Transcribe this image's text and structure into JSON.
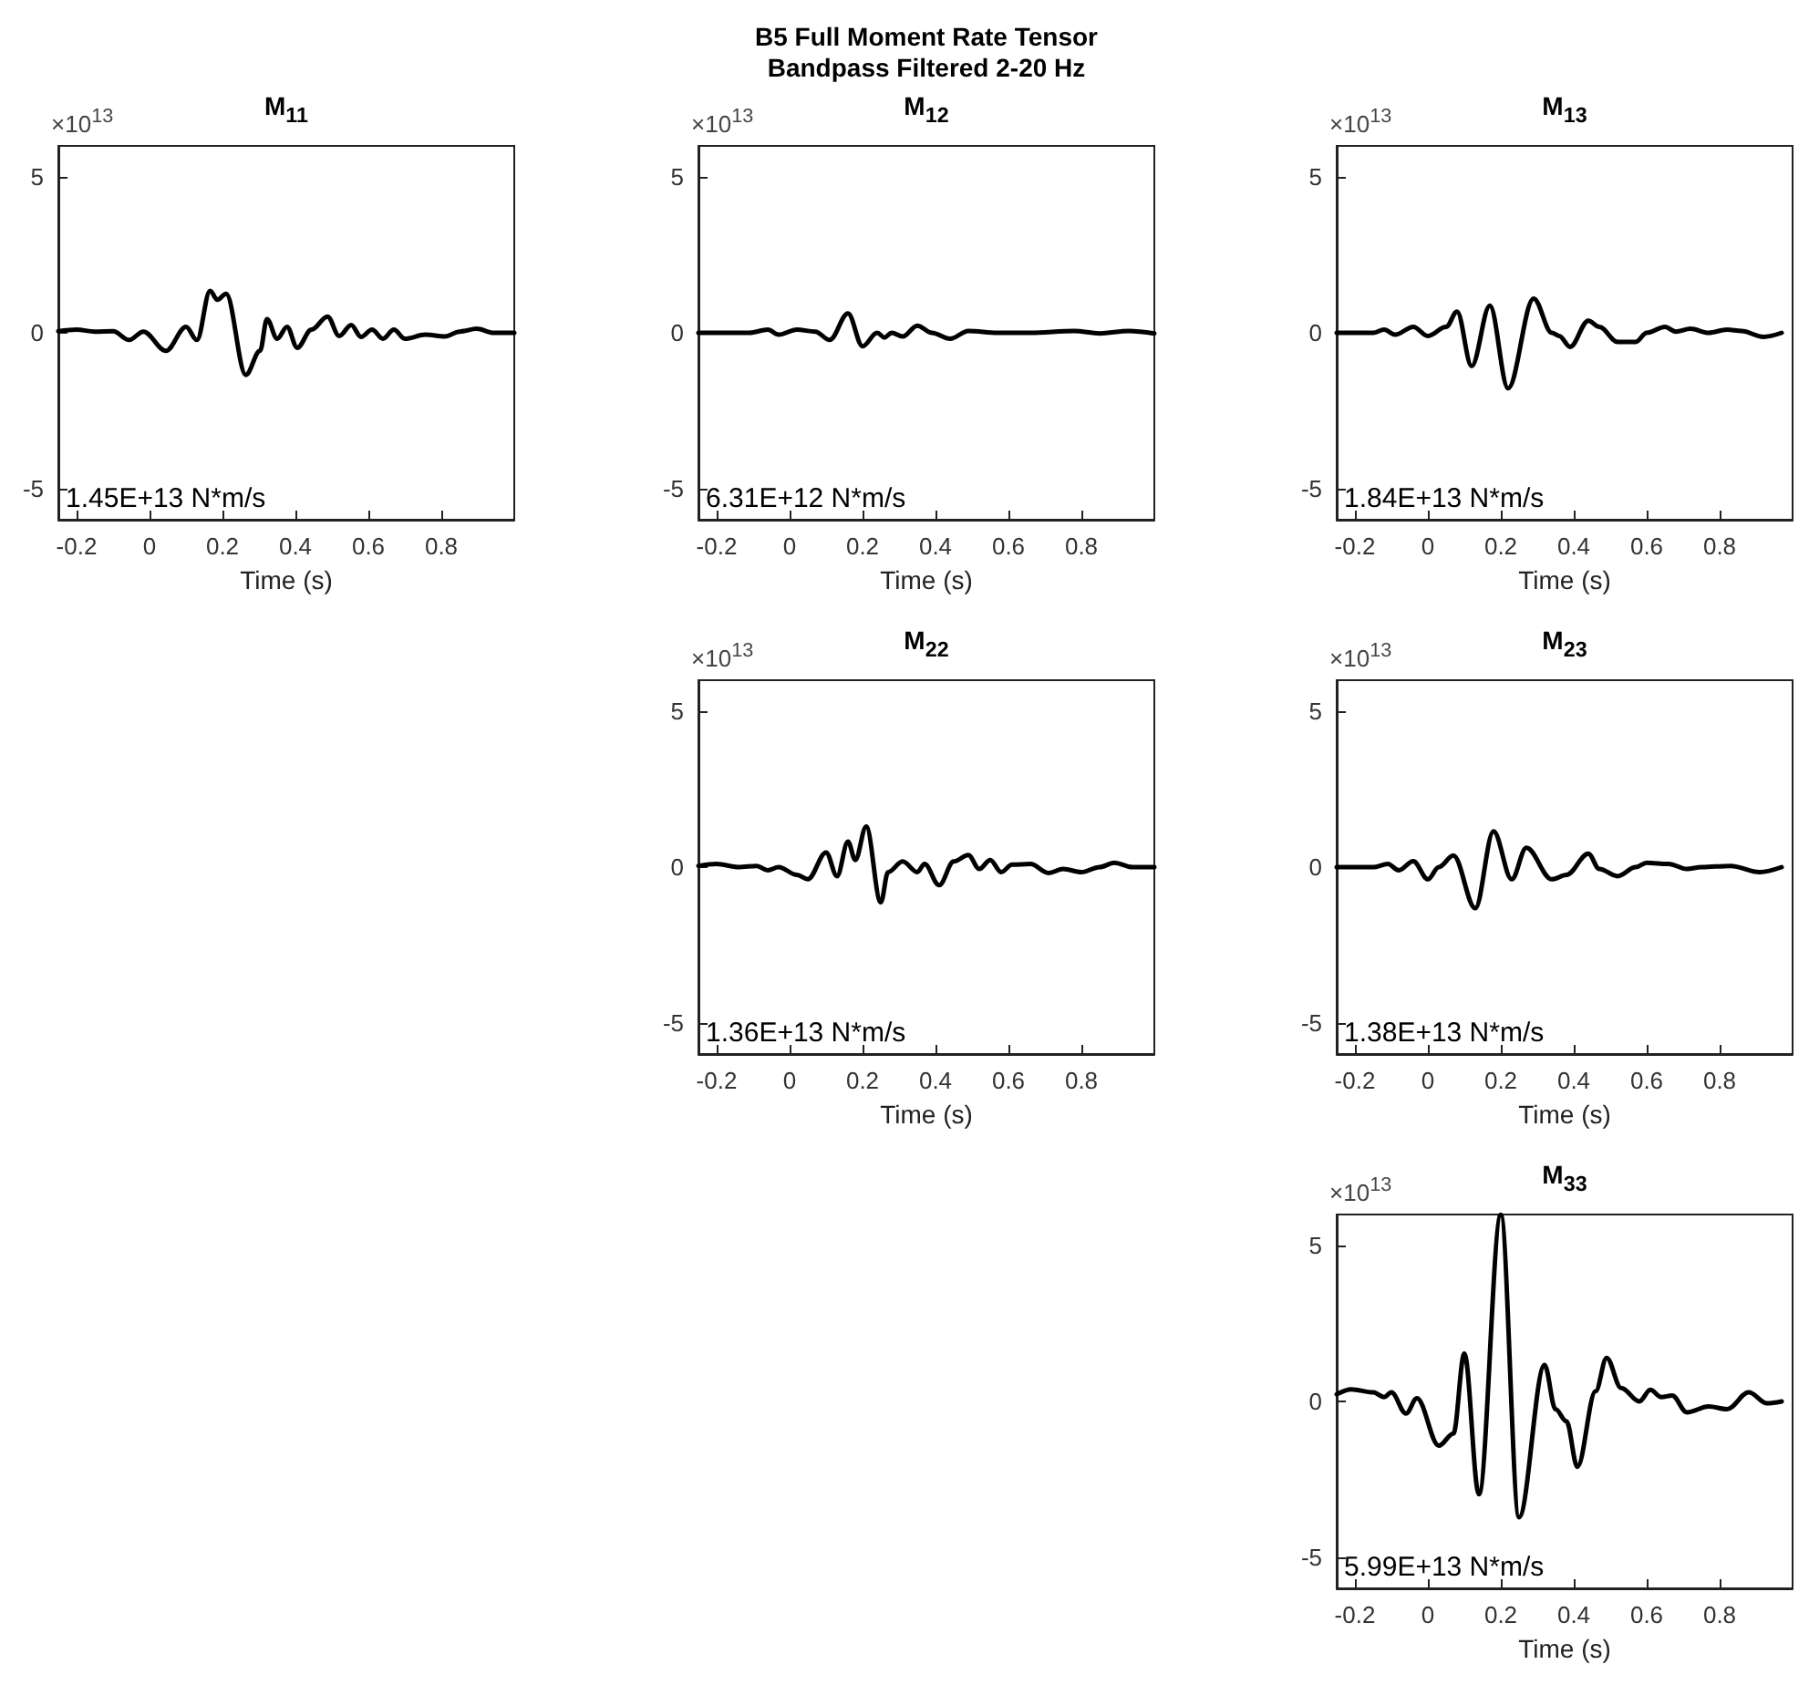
{
  "chart_data": [
    {
      "type": "other",
      "title": "B5 Full Moment Rate Tensor",
      "subtitle": "Bandpass Filtered 2-20 Hz"
    },
    {
      "type": "line",
      "title": "M$_{11}$",
      "ylabel": "×10$^{13}$",
      "xlabel": "Time (s)",
      "color": "#000000",
      "line_style": "solid",
      "marker": "none",
      "grid": false,
      "xlim": [
        -0.25,
        1
      ],
      "ylim": [
        -6,
        6
      ],
      "xticks": [
        -0.2,
        0,
        0.2,
        0.4,
        0.6,
        0.8
      ],
      "yticks": [
        -5,
        0,
        5
      ],
      "annotations": [
        "1.45E+13 N*m/s"
      ],
      "x": [
        -0.25,
        -0.2,
        -0.15,
        -0.1,
        -0.056,
        -0.017,
        0.045,
        0.1,
        0.13,
        0.166,
        0.186,
        0.21,
        0.264,
        0.303,
        0.322,
        0.35,
        0.377,
        0.405,
        0.444,
        0.488,
        0.52,
        0.553,
        0.58,
        0.61,
        0.64,
        0.67,
        0.7,
        0.756,
        0.81,
        0.85,
        0.897,
        0.944,
        1.0
      ],
      "values": [
        0.05,
        0.1,
        0.04,
        0.05,
        -0.23,
        0.04,
        -0.58,
        0.19,
        -0.23,
        1.35,
        1.06,
        1.25,
        -1.35,
        -0.58,
        0.44,
        -0.19,
        0.19,
        -0.48,
        0.1,
        0.52,
        -0.1,
        0.25,
        -0.13,
        0.1,
        -0.19,
        0.1,
        -0.19,
        -0.06,
        -0.12,
        0.04,
        0.13,
        0,
        0
      ]
    },
    {
      "type": "line",
      "title": "M$_{12}$",
      "ylabel": "×10$^{13}$",
      "xlabel": "Time (s)",
      "color": "#000000",
      "line_style": "solid",
      "marker": "none",
      "grid": false,
      "xlim": [
        -0.25,
        1
      ],
      "ylim": [
        -6,
        6
      ],
      "xticks": [
        -0.2,
        0,
        0.2,
        0.4,
        0.6,
        0.8
      ],
      "yticks": [
        -5,
        0,
        5
      ],
      "annotations": [
        "6.31E+12 N*m/s"
      ],
      "x": [
        -0.25,
        -0.11,
        -0.06,
        -0.03,
        0.02,
        0.07,
        0.11,
        0.16,
        0.2,
        0.24,
        0.26,
        0.28,
        0.31,
        0.35,
        0.39,
        0.44,
        0.49,
        0.57,
        0.66,
        0.78,
        0.85,
        0.93,
        1.0
      ],
      "values": [
        0,
        0,
        0.1,
        -0.06,
        0.1,
        0.04,
        -0.23,
        0.62,
        -0.43,
        0,
        -0.15,
        0,
        -0.12,
        0.23,
        0,
        -0.19,
        0.06,
        0,
        0,
        0.06,
        -0.02,
        0.06,
        -0.02
      ]
    },
    {
      "type": "line",
      "title": "M$_{13}$",
      "ylabel": "×10$^{13}$",
      "xlabel": "Time (s)",
      "color": "#000000",
      "line_style": "solid",
      "marker": "none",
      "grid": false,
      "xlim": [
        -0.25,
        1
      ],
      "ylim": [
        -6,
        6
      ],
      "xticks": [
        -0.2,
        0,
        0.2,
        0.4,
        0.6,
        0.8
      ],
      "yticks": [
        -5,
        0,
        5
      ],
      "annotations": [
        "1.84E+13 N*m/s"
      ],
      "x": [
        -0.25,
        -0.15,
        -0.12,
        -0.09,
        -0.04,
        0,
        0.05,
        0.08,
        0.12,
        0.17,
        0.22,
        0.29,
        0.34,
        0.36,
        0.39,
        0.44,
        0.47,
        0.52,
        0.57,
        0.6,
        0.65,
        0.68,
        0.72,
        0.77,
        0.82,
        0.86,
        0.92,
        0.97
      ],
      "values": [
        0,
        0,
        0.1,
        -0.06,
        0.19,
        -0.1,
        0.19,
        0.68,
        -1.07,
        0.87,
        -1.78,
        1.1,
        0,
        -0.1,
        -0.45,
        0.39,
        0.19,
        -0.29,
        -0.29,
        0,
        0.19,
        0.04,
        0.13,
        0,
        0.1,
        0.06,
        -0.13,
        0
      ]
    },
    {
      "type": "line",
      "title": "M$_{22}$",
      "ylabel": "×10$^{13}$",
      "xlabel": "Time (s)",
      "color": "#000000",
      "line_style": "solid",
      "marker": "none",
      "grid": false,
      "xlim": [
        -0.25,
        1
      ],
      "ylim": [
        -6,
        6
      ],
      "xticks": [
        -0.2,
        0,
        0.2,
        0.4,
        0.6,
        0.8
      ],
      "yticks": [
        -5,
        0,
        5
      ],
      "annotations": [
        "1.36E+13 N*m/s"
      ],
      "x": [
        -0.25,
        -0.2,
        -0.14,
        -0.09,
        -0.06,
        -0.03,
        0.02,
        0.05,
        0.1,
        0.13,
        0.16,
        0.18,
        0.21,
        0.25,
        0.27,
        0.31,
        0.35,
        0.37,
        0.41,
        0.45,
        0.49,
        0.52,
        0.55,
        0.58,
        0.61,
        0.66,
        0.71,
        0.75,
        0.8,
        0.85,
        0.89,
        0.94,
        1.0
      ],
      "values": [
        0.04,
        0.1,
        0,
        0.04,
        -0.1,
        0,
        -0.25,
        -0.39,
        0.47,
        -0.29,
        0.82,
        0.23,
        1.3,
        -1.13,
        -0.16,
        0.18,
        -0.16,
        0.1,
        -0.58,
        0.18,
        0.39,
        -0.06,
        0.23,
        -0.16,
        0.08,
        0.1,
        -0.19,
        -0.06,
        -0.16,
        0,
        0.14,
        0,
        0
      ]
    },
    {
      "type": "line",
      "title": "M$_{23}$",
      "ylabel": "×10$^{13}$",
      "xlabel": "Time (s)",
      "color": "#000000",
      "line_style": "solid",
      "marker": "none",
      "grid": false,
      "xlim": [
        -0.25,
        1
      ],
      "ylim": [
        -6,
        6
      ],
      "xticks": [
        -0.2,
        0,
        0.2,
        0.4,
        0.6,
        0.8
      ],
      "yticks": [
        -5,
        0,
        5
      ],
      "annotations": [
        "1.38E+13 N*m/s"
      ],
      "x": [
        -0.25,
        -0.15,
        -0.11,
        -0.08,
        -0.04,
        0,
        0.03,
        0.07,
        0.13,
        0.18,
        0.23,
        0.27,
        0.34,
        0.38,
        0.44,
        0.47,
        0.52,
        0.57,
        0.6,
        0.66,
        0.71,
        0.75,
        0.83,
        0.91,
        0.97
      ],
      "values": [
        0,
        0,
        0.1,
        -0.1,
        0.19,
        -0.39,
        0,
        0.37,
        -1.32,
        1.15,
        -0.39,
        0.62,
        -0.39,
        -0.25,
        0.43,
        -0.06,
        -0.29,
        0,
        0.14,
        0.1,
        -0.06,
        0,
        0.04,
        -0.16,
        0
      ]
    },
    {
      "type": "line",
      "title": "M$_{33}$",
      "ylabel": "×10$^{13}$",
      "xlabel": "Time (s)",
      "color": "#000000",
      "line_style": "solid",
      "marker": "none",
      "grid": false,
      "xlim": [
        -0.25,
        1
      ],
      "ylim": [
        -6,
        6
      ],
      "xticks": [
        -0.2,
        0,
        0.2,
        0.4,
        0.6,
        0.8
      ],
      "yticks": [
        -5,
        0,
        5
      ],
      "annotations": [
        "5.99E+13 N*m/s"
      ],
      "x": [
        -0.25,
        -0.21,
        -0.15,
        -0.12,
        -0.1,
        -0.06,
        -0.03,
        0.03,
        0.07,
        0.1,
        0.14,
        0.2,
        0.25,
        0.32,
        0.35,
        0.38,
        0.41,
        0.46,
        0.49,
        0.53,
        0.58,
        0.61,
        0.64,
        0.67,
        0.71,
        0.77,
        0.82,
        0.88,
        0.93,
        0.97
      ],
      "values": [
        0.23,
        0.39,
        0.29,
        0.14,
        0.29,
        -0.39,
        0.1,
        -1.42,
        -1.03,
        1.54,
        -2.98,
        5.99,
        -3.72,
        1.17,
        -0.25,
        -0.64,
        -2.1,
        0.33,
        1.4,
        0.43,
        0,
        0.37,
        0.14,
        0.19,
        -0.35,
        -0.16,
        -0.25,
        0.29,
        -0.06,
        0
      ]
    }
  ]
}
